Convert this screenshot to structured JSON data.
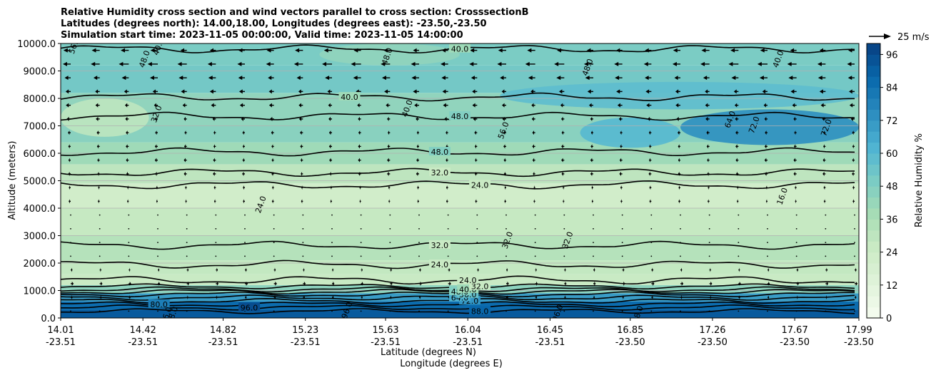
{
  "chart_data": {
    "type": "heatmap",
    "title_lines": [
      "Relative Humidity cross section and wind vectors parallel to cross section: CrosssectionB",
      "Latitudes (degrees north): 14.00,18.00, Longitudes (degrees east): -23.50,-23.50",
      "Simulation start time: 2023-11-05 00:00:00, Valid time: 2023-11-05 14:00:00"
    ],
    "ylabel": "Altitude (meters)",
    "xlabel_lines": [
      "Latitude (degrees N)",
      "Longitude (degrees E)"
    ],
    "ylim": [
      0,
      10000
    ],
    "yticks": [
      "0.0",
      "1000.0",
      "2000.0",
      "3000.0",
      "4000.0",
      "5000.0",
      "6000.0",
      "7000.0",
      "8000.0",
      "9000.0",
      "10000.0"
    ],
    "xlim": [
      14.01,
      17.99
    ],
    "xticks": [
      {
        "lat": 14.01,
        "lat_label": "14.01",
        "lon_label": "-23.51"
      },
      {
        "lat": 14.42,
        "lat_label": "14.42",
        "lon_label": "-23.51"
      },
      {
        "lat": 14.82,
        "lat_label": "14.82",
        "lon_label": "-23.51"
      },
      {
        "lat": 15.23,
        "lat_label": "15.23",
        "lon_label": "-23.51"
      },
      {
        "lat": 15.63,
        "lat_label": "15.63",
        "lon_label": "-23.51"
      },
      {
        "lat": 16.04,
        "lat_label": "16.04",
        "lon_label": "-23.51"
      },
      {
        "lat": 16.45,
        "lat_label": "16.45",
        "lon_label": "-23.51"
      },
      {
        "lat": 16.85,
        "lat_label": "16.85",
        "lon_label": "-23.50"
      },
      {
        "lat": 17.26,
        "lat_label": "17.26",
        "lon_label": "-23.50"
      },
      {
        "lat": 17.67,
        "lat_label": "17.67",
        "lon_label": "-23.50"
      },
      {
        "lat": 17.99,
        "lat_label": "17.99",
        "lon_label": "-23.50"
      }
    ],
    "grid": "horizontal",
    "colorbar": {
      "label": "Relative Humidity %",
      "range": [
        0,
        100
      ],
      "ticks": [
        "0",
        "12",
        "24",
        "36",
        "48",
        "60",
        "72",
        "84",
        "96"
      ],
      "levels": 25,
      "colors": [
        "#f7fcf0",
        "#e0f3db",
        "#ccebc5",
        "#a8ddb5",
        "#7bccc4",
        "#4eb3d3",
        "#2b8cbe",
        "#0868ac",
        "#084081"
      ]
    },
    "quiver_key": {
      "label": "25 m/s",
      "speed": 25
    },
    "layers": [
      {
        "z0": 0,
        "z1": 300,
        "rh": 92
      },
      {
        "z0": 300,
        "z1": 600,
        "rh": 86
      },
      {
        "z0": 600,
        "z1": 900,
        "rh": 70
      },
      {
        "z0": 900,
        "z1": 1200,
        "rh": 45
      },
      {
        "z0": 1200,
        "z1": 1600,
        "rh": 26
      },
      {
        "z0": 1600,
        "z1": 2100,
        "rh": 28
      },
      {
        "z0": 2100,
        "z1": 3000,
        "rh": 33
      },
      {
        "z0": 3000,
        "z1": 4000,
        "rh": 27
      },
      {
        "z0": 4000,
        "z1": 4900,
        "rh": 22
      },
      {
        "z0": 4900,
        "z1": 5600,
        "rh": 30
      },
      {
        "z0": 5600,
        "z1": 6400,
        "rh": 40
      },
      {
        "z0": 6400,
        "z1": 7000,
        "rh": 46
      },
      {
        "z0": 7000,
        "z1": 8200,
        "rh": 44
      },
      {
        "z0": 8200,
        "z1": 9200,
        "rh": 52
      },
      {
        "z0": 9200,
        "z1": 10000,
        "rh": 50
      }
    ],
    "patches": [
      {
        "x0": 17.1,
        "x1": 17.99,
        "z0": 6300,
        "z1": 7600,
        "rh": 74
      },
      {
        "x0": 16.6,
        "x1": 17.1,
        "z0": 6200,
        "z1": 7300,
        "rh": 60
      },
      {
        "x0": 16.2,
        "x1": 17.99,
        "z0": 7600,
        "z1": 8600,
        "rh": 58
      },
      {
        "x0": 14.01,
        "x1": 14.45,
        "z0": 6600,
        "z1": 8000,
        "rh": 30
      },
      {
        "x0": 15.3,
        "x1": 16.0,
        "z0": 9200,
        "z1": 10000,
        "rh": 44
      }
    ],
    "contours": [
      {
        "level": 88,
        "z": 250,
        "label": "88.0",
        "label_lat": 16.1
      },
      {
        "level": 96,
        "z": 380,
        "label": "96.0",
        "label_lat": 14.95
      },
      {
        "level": 80,
        "z": 500,
        "label": "80.0",
        "label_lat": 14.5
      },
      {
        "level": 72,
        "z": 620,
        "label": "72.0",
        "label_lat": 16.05
      },
      {
        "level": 64,
        "z": 740,
        "label": "64.0",
        "label_lat": 16.0
      },
      {
        "level": 56,
        "z": 860,
        "label": "56.0",
        "label_lat": 16.04
      },
      {
        "level": 48,
        "z": 960,
        "label": "48.0",
        "label_lat": 16.0
      },
      {
        "level": 40,
        "z": 1040,
        "label": "40.0",
        "label_lat": 16.04
      },
      {
        "level": 32,
        "z": 1150,
        "label": "32.0",
        "label_lat": 16.1
      },
      {
        "level": 24,
        "z": 1380,
        "label": "24.0",
        "label_lat": 16.04
      },
      {
        "level": 24,
        "z": 1950,
        "label": "24.0",
        "label_lat": 15.9
      },
      {
        "level": 32,
        "z": 2650,
        "label": "32.0",
        "label_lat": 15.9
      },
      {
        "level": 24,
        "z": 4850,
        "label": "24.0",
        "label_lat": 16.1
      },
      {
        "level": 32,
        "z": 5300,
        "label": "32.0",
        "label_lat": 15.9
      },
      {
        "level": 48,
        "z": 6050,
        "label": "48.0",
        "label_lat": 15.9
      },
      {
        "level": 48,
        "z": 7350,
        "label": "48.0",
        "label_lat": 16.0
      },
      {
        "level": 40,
        "z": 8050,
        "label": "40.0",
        "label_lat": 15.45
      },
      {
        "level": 40,
        "z": 9800,
        "label": "40.0",
        "label_lat": 16.0
      }
    ],
    "extra_labels": [
      {
        "text": "32.0",
        "lat": 14.5,
        "z": 7400
      },
      {
        "text": "24.0",
        "lat": 15.02,
        "z": 4100
      },
      {
        "text": "32.0",
        "lat": 16.25,
        "z": 2800
      },
      {
        "text": "32.0",
        "lat": 16.55,
        "z": 2800
      },
      {
        "text": "16.0",
        "lat": 17.62,
        "z": 4400
      },
      {
        "text": "56.0",
        "lat": 16.23,
        "z": 6800
      },
      {
        "text": "64.0",
        "lat": 17.36,
        "z": 7200
      },
      {
        "text": "72.0",
        "lat": 17.48,
        "z": 7000
      },
      {
        "text": "72.0",
        "lat": 17.84,
        "z": 6900
      },
      {
        "text": "40.0",
        "lat": 15.75,
        "z": 7600
      },
      {
        "text": "48.0",
        "lat": 16.65,
        "z": 9100
      },
      {
        "text": "40.0",
        "lat": 17.6,
        "z": 9400
      },
      {
        "text": "56.0",
        "lat": 14.09,
        "z": 9900
      },
      {
        "text": "48.0",
        "lat": 14.44,
        "z": 9400
      },
      {
        "text": "40.0",
        "lat": 14.51,
        "z": 9850
      },
      {
        "text": "48.0",
        "lat": 15.65,
        "z": 9500
      },
      {
        "text": "96.0",
        "lat": 14.55,
        "z": 60
      },
      {
        "text": "88.0",
        "lat": 14.58,
        "z": 70
      },
      {
        "text": "96.0",
        "lat": 15.45,
        "z": 250
      },
      {
        "text": "96.0",
        "lat": 16.5,
        "z": 150
      },
      {
        "text": "88.0",
        "lat": 16.9,
        "z": 100
      }
    ],
    "wind": {
      "x_count": 28,
      "levels_m": [
        250,
        750,
        1250,
        1750,
        2250,
        2750,
        3250,
        3750,
        4250,
        4750,
        5250,
        5750,
        6250,
        6750,
        7250,
        7750,
        8250,
        8750,
        9250,
        9750
      ],
      "u_ms": [
        1,
        2,
        3,
        2,
        1,
        1,
        0,
        -1,
        -2,
        -2,
        -3,
        -3,
        -3,
        -3,
        -4,
        -5,
        -6,
        -8,
        -10,
        -8
      ]
    }
  }
}
